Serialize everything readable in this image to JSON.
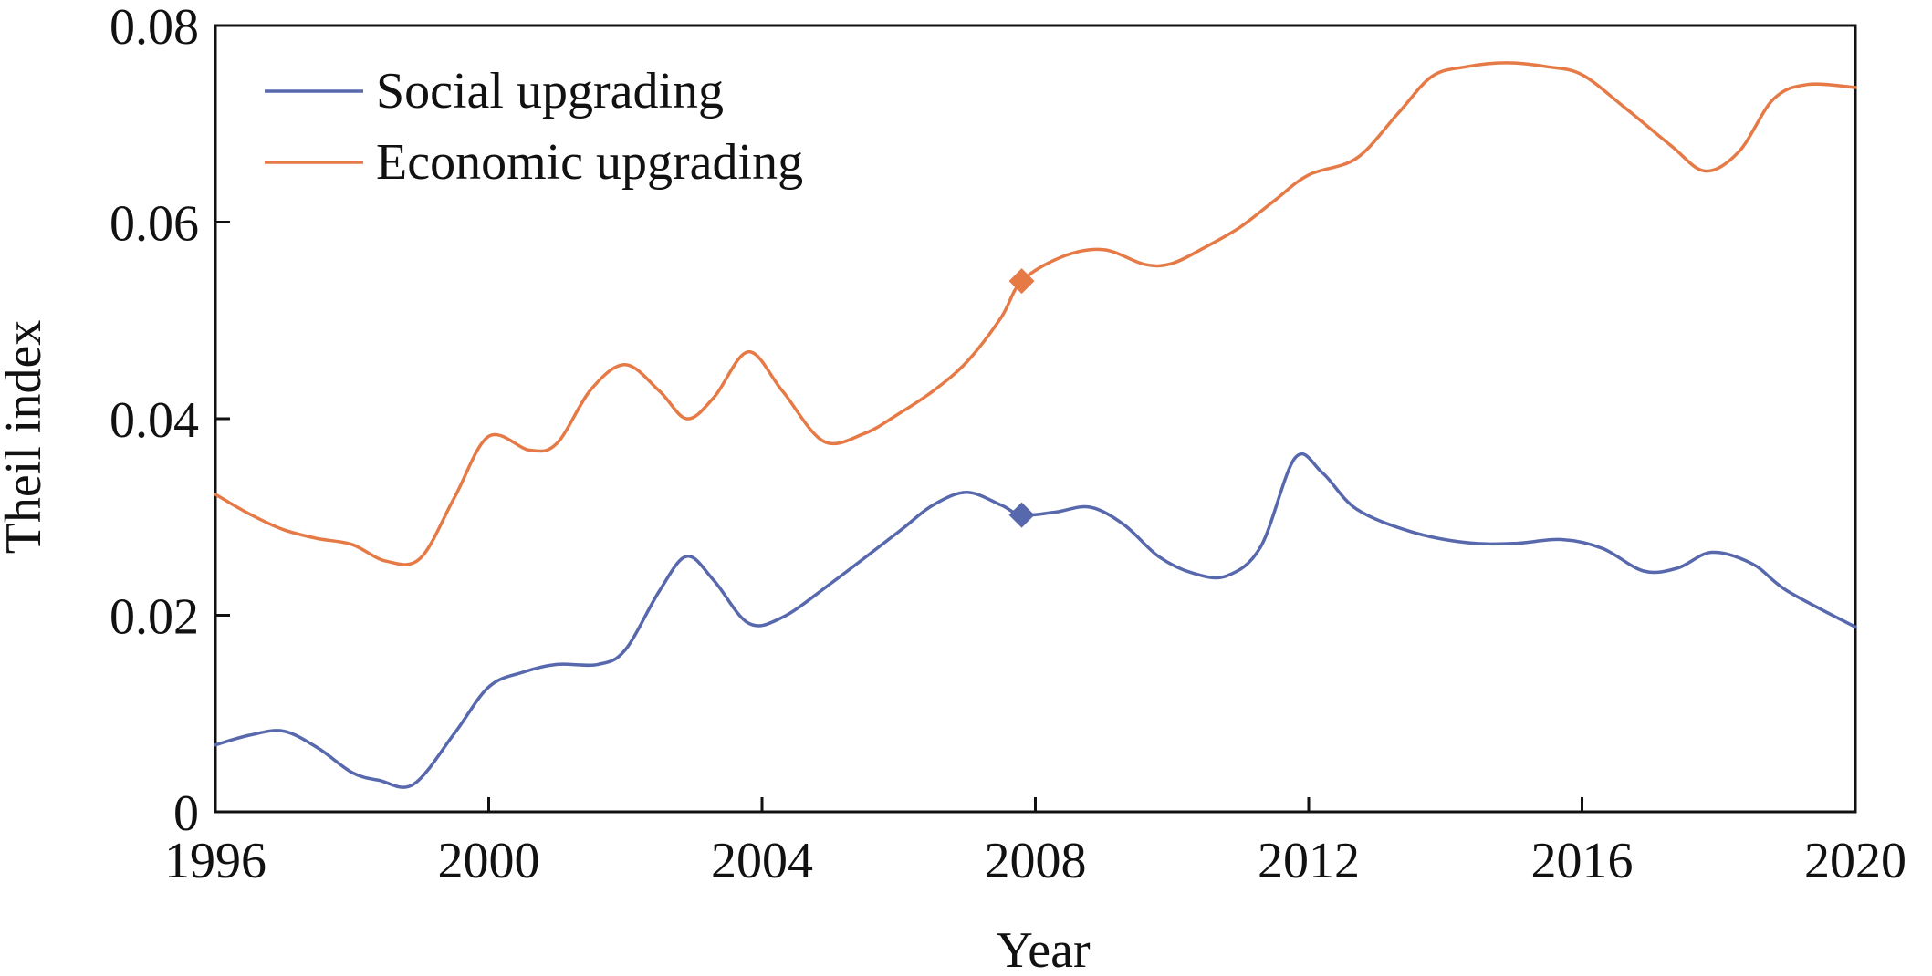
{
  "chart_data": {
    "type": "line",
    "title": "",
    "xlabel": "Year",
    "ylabel": "Theil index",
    "xlim": [
      1996,
      2020
    ],
    "ylim": [
      0,
      0.08
    ],
    "x_ticks": [
      1996,
      2000,
      2004,
      2008,
      2012,
      2016,
      2020
    ],
    "y_ticks": [
      0,
      0.02,
      0.04,
      0.06,
      0.08
    ],
    "x_tick_labels": [
      "1996",
      "2000",
      "2004",
      "2008",
      "2012",
      "2016",
      "2020"
    ],
    "y_tick_labels": [
      "0",
      "0.02",
      "0.04",
      "0.06",
      "0.08"
    ],
    "grid": false,
    "legend_position": "top-left",
    "series": [
      {
        "name": "Social upgrading",
        "color": "#5868ad",
        "x": [
          1996,
          1996.5,
          1997,
          1997.5,
          1998,
          1998.4,
          1998.9,
          1999.5,
          2000,
          2000.5,
          2001,
          2001.6,
          2002,
          2002.5,
          2002.9,
          2003.3,
          2003.8,
          2004.3,
          2005,
          2006,
          2006.5,
          2007,
          2007.5,
          2007.8,
          2008.3,
          2008.8,
          2009.3,
          2009.8,
          2010.3,
          2010.8,
          2011.3,
          2011.8,
          2012.2,
          2012.7,
          2013.5,
          2014.3,
          2015,
          2015.7,
          2016.3,
          2016.9,
          2017.4,
          2017.9,
          2018.5,
          2019,
          2020
        ],
        "y": [
          0.0068,
          0.0078,
          0.0082,
          0.0065,
          0.004,
          0.0032,
          0.0028,
          0.008,
          0.0127,
          0.0142,
          0.015,
          0.015,
          0.0165,
          0.0225,
          0.026,
          0.0235,
          0.0192,
          0.0198,
          0.0232,
          0.0285,
          0.0312,
          0.0325,
          0.0312,
          0.0302,
          0.0305,
          0.031,
          0.0292,
          0.026,
          0.0243,
          0.024,
          0.027,
          0.036,
          0.0345,
          0.0308,
          0.0285,
          0.0274,
          0.0273,
          0.0277,
          0.0268,
          0.0245,
          0.0248,
          0.0264,
          0.0252,
          0.0225,
          0.0188
        ]
      },
      {
        "name": "Economic upgrading",
        "color": "#e57a47",
        "x": [
          1996,
          1996.5,
          1997,
          1997.5,
          1998,
          1998.5,
          1999,
          1999.5,
          2000,
          2000.6,
          2001,
          2001.5,
          2002,
          2002.5,
          2002.9,
          2003.3,
          2003.8,
          2004.3,
          2004.9,
          2005.5,
          2006,
          2006.5,
          2007,
          2007.5,
          2007.8,
          2008.4,
          2009,
          2009.6,
          2010,
          2010.5,
          2011,
          2011.5,
          2012,
          2012.7,
          2013.3,
          2013.8,
          2014.3,
          2014.9,
          2015.5,
          2016,
          2016.6,
          2017.3,
          2017.8,
          2018.3,
          2018.8,
          2019.3,
          2020
        ],
        "y": [
          0.0323,
          0.0303,
          0.0287,
          0.0278,
          0.0272,
          0.0255,
          0.0258,
          0.032,
          0.0382,
          0.0368,
          0.0375,
          0.043,
          0.0455,
          0.0428,
          0.04,
          0.0422,
          0.0468,
          0.0428,
          0.0377,
          0.0385,
          0.0405,
          0.0428,
          0.0458,
          0.0503,
          0.054,
          0.0565,
          0.0572,
          0.0557,
          0.0558,
          0.0575,
          0.0595,
          0.0622,
          0.0648,
          0.0665,
          0.071,
          0.0748,
          0.0758,
          0.0762,
          0.0758,
          0.075,
          0.0718,
          0.0678,
          0.0652,
          0.0672,
          0.0725,
          0.074,
          0.0737
        ]
      }
    ],
    "markers": [
      {
        "series": "Social upgrading",
        "x": 2007.8,
        "y": 0.0302,
        "shape": "diamond"
      },
      {
        "series": "Economic upgrading",
        "x": 2007.8,
        "y": 0.054,
        "shape": "diamond"
      }
    ]
  }
}
